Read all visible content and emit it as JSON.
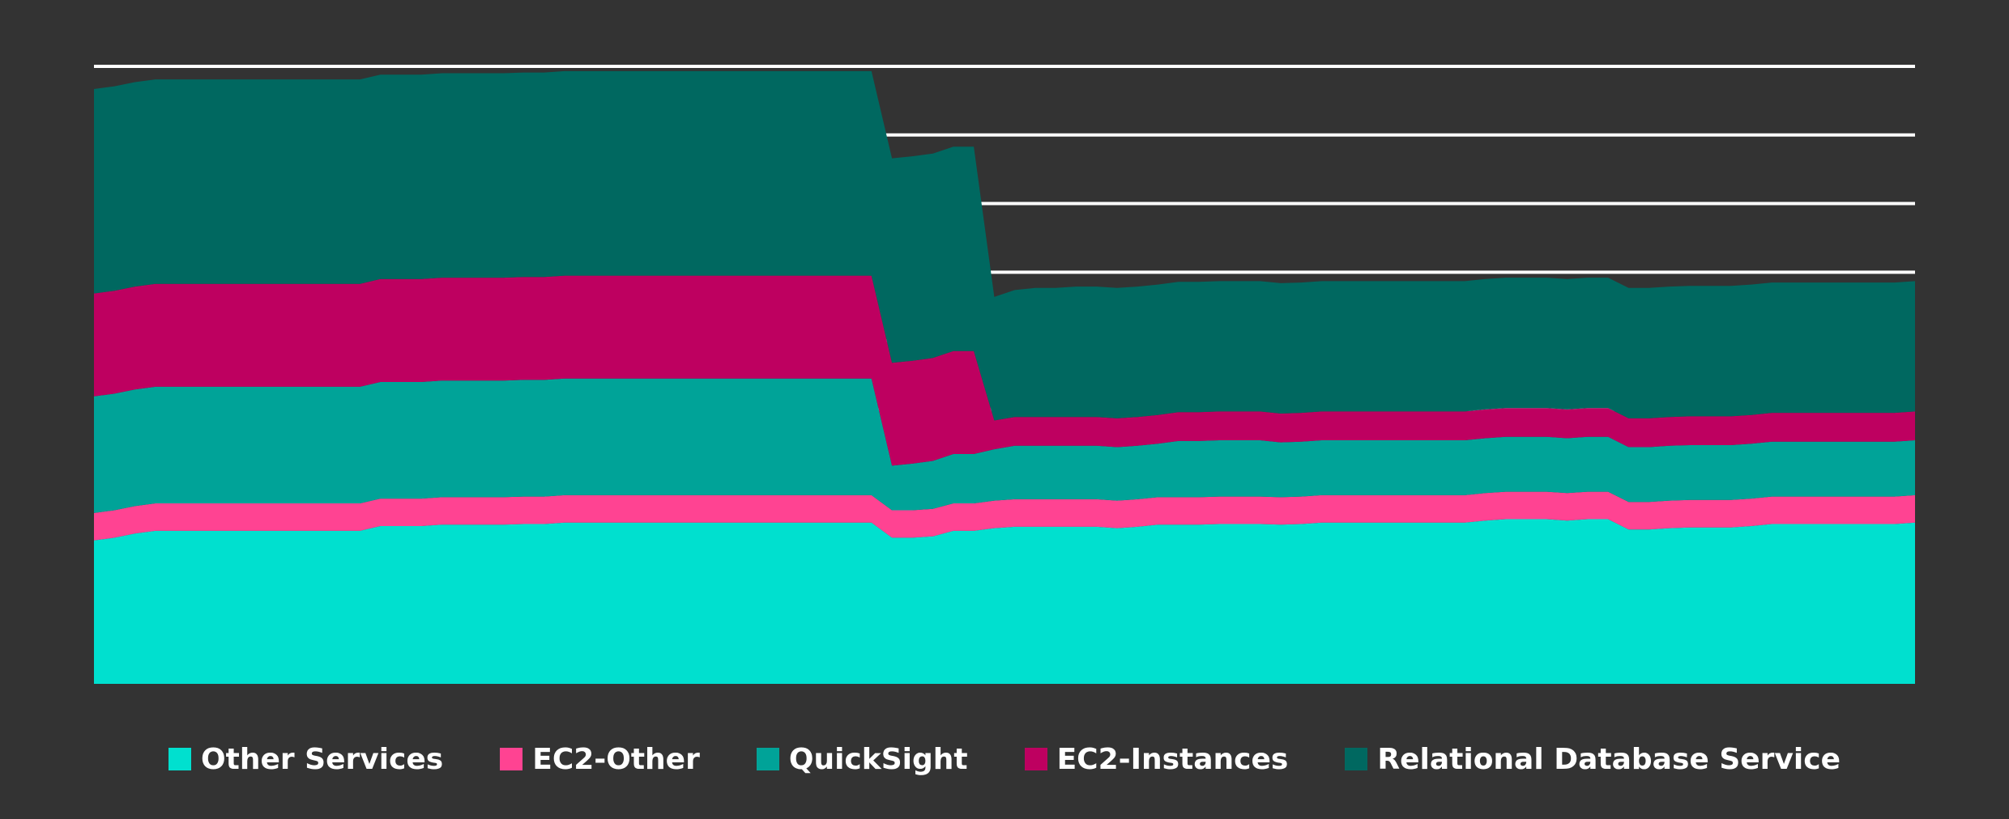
{
  "chart_data": {
    "type": "area",
    "stacked": true,
    "grid": true,
    "legend_position": "bottom",
    "x": [
      1,
      2,
      3,
      4,
      5,
      6,
      7,
      8,
      9,
      10,
      11,
      12,
      13,
      14,
      15,
      16,
      17,
      18,
      19,
      20,
      21,
      22,
      23,
      24,
      25,
      26,
      27,
      28,
      29,
      30,
      31,
      32,
      33,
      34,
      35,
      36,
      37,
      38,
      39,
      40,
      41,
      42,
      43,
      44,
      45,
      46,
      47,
      48,
      49,
      50,
      51,
      52,
      53,
      54,
      55,
      56,
      57,
      58,
      59,
      60,
      61,
      62,
      63,
      64,
      65,
      66,
      67,
      68,
      69,
      70,
      71,
      72,
      73,
      74,
      75,
      76,
      77,
      78,
      79,
      80,
      81,
      82,
      83,
      84,
      85,
      86,
      87,
      88,
      89,
      90
    ],
    "ylim": [
      0,
      900
    ],
    "series": [
      {
        "name": "Other Services",
        "color": "#00E0CF",
        "values": [
          209,
          213,
          219,
          223,
          223,
          223,
          223,
          223,
          223,
          223,
          223,
          223,
          223,
          223,
          230,
          230,
          230,
          232,
          232,
          232,
          232,
          233,
          233,
          235,
          235,
          235,
          235,
          235,
          235,
          235,
          235,
          235,
          235,
          235,
          235,
          235,
          235,
          235,
          235,
          213,
          213,
          215,
          223,
          223,
          227,
          229,
          229,
          229,
          229,
          229,
          227,
          229,
          232,
          232,
          232,
          233,
          233,
          233,
          232,
          233,
          235,
          235,
          235,
          235,
          235,
          235,
          235,
          235,
          238,
          240,
          240,
          240,
          238,
          240,
          240,
          225,
          225,
          227,
          228,
          228,
          228,
          230,
          233,
          233,
          233,
          233,
          233,
          233,
          233,
          235
        ]
      },
      {
        "name": "EC2-Other",
        "color": "#FF4392",
        "values": [
          40,
          40,
          40,
          40,
          40,
          40,
          40,
          40,
          40,
          40,
          40,
          40,
          40,
          40,
          40,
          40,
          40,
          40,
          40,
          40,
          40,
          40,
          40,
          40,
          40,
          40,
          40,
          40,
          40,
          40,
          40,
          40,
          40,
          40,
          40,
          40,
          40,
          40,
          40,
          40,
          40,
          40,
          40,
          40,
          40,
          40,
          40,
          40,
          40,
          40,
          40,
          40,
          40,
          40,
          40,
          40,
          40,
          40,
          40,
          40,
          40,
          40,
          40,
          40,
          40,
          40,
          40,
          40,
          40,
          40,
          40,
          40,
          40,
          40,
          40,
          40,
          40,
          40,
          40,
          40,
          40,
          40,
          40,
          40,
          40,
          40,
          40,
          40,
          40,
          40
        ]
      },
      {
        "name": "QuickSight",
        "color": "#00A398",
        "values": [
          170,
          170,
          170,
          170,
          170,
          170,
          170,
          170,
          170,
          170,
          170,
          170,
          170,
          170,
          170,
          170,
          170,
          170,
          170,
          170,
          170,
          170,
          170,
          170,
          170,
          170,
          170,
          170,
          170,
          170,
          170,
          170,
          170,
          170,
          170,
          170,
          170,
          170,
          170,
          65,
          68,
          70,
          72,
          72,
          75,
          78,
          78,
          78,
          78,
          78,
          78,
          78,
          78,
          82,
          82,
          82,
          82,
          82,
          80,
          80,
          80,
          80,
          80,
          80,
          80,
          80,
          80,
          80,
          80,
          80,
          80,
          80,
          80,
          80,
          80,
          80,
          80,
          80,
          80,
          80,
          80,
          80,
          80,
          80,
          80,
          80,
          80,
          80,
          80,
          80
        ]
      },
      {
        "name": "EC2-Instances",
        "color": "#BE0060",
        "values": [
          150,
          150,
          150,
          150,
          150,
          150,
          150,
          150,
          150,
          150,
          150,
          150,
          150,
          150,
          150,
          150,
          150,
          150,
          150,
          150,
          150,
          150,
          150,
          150,
          150,
          150,
          150,
          150,
          150,
          150,
          150,
          150,
          150,
          150,
          150,
          150,
          150,
          150,
          150,
          150,
          150,
          150,
          150,
          150,
          42,
          42,
          42,
          42,
          42,
          42,
          42,
          42,
          42,
          42,
          42,
          42,
          42,
          42,
          42,
          42,
          42,
          42,
          42,
          42,
          42,
          42,
          42,
          42,
          42,
          42,
          42,
          42,
          42,
          42,
          42,
          42,
          42,
          42,
          42,
          42,
          42,
          42,
          42,
          42,
          42,
          42,
          42,
          42,
          42,
          42
        ]
      },
      {
        "name": "Relational Database Service",
        "color": "#006860",
        "values": [
          298,
          298,
          298,
          298,
          298,
          298,
          298,
          298,
          298,
          298,
          298,
          298,
          298,
          298,
          298,
          298,
          298,
          298,
          298,
          298,
          298,
          298,
          298,
          298,
          298,
          298,
          298,
          298,
          298,
          298,
          298,
          298,
          298,
          298,
          298,
          298,
          298,
          298,
          298,
          298,
          298,
          298,
          298,
          298,
          180,
          185,
          188,
          188,
          190,
          190,
          190,
          190,
          190,
          190,
          190,
          190,
          190,
          190,
          190,
          190,
          190,
          190,
          190,
          190,
          190,
          190,
          190,
          190,
          190,
          190,
          190,
          190,
          190,
          190,
          190,
          190,
          190,
          190,
          190,
          190,
          190,
          190,
          190,
          190,
          190,
          190,
          190,
          190,
          190,
          190
        ]
      }
    ]
  }
}
